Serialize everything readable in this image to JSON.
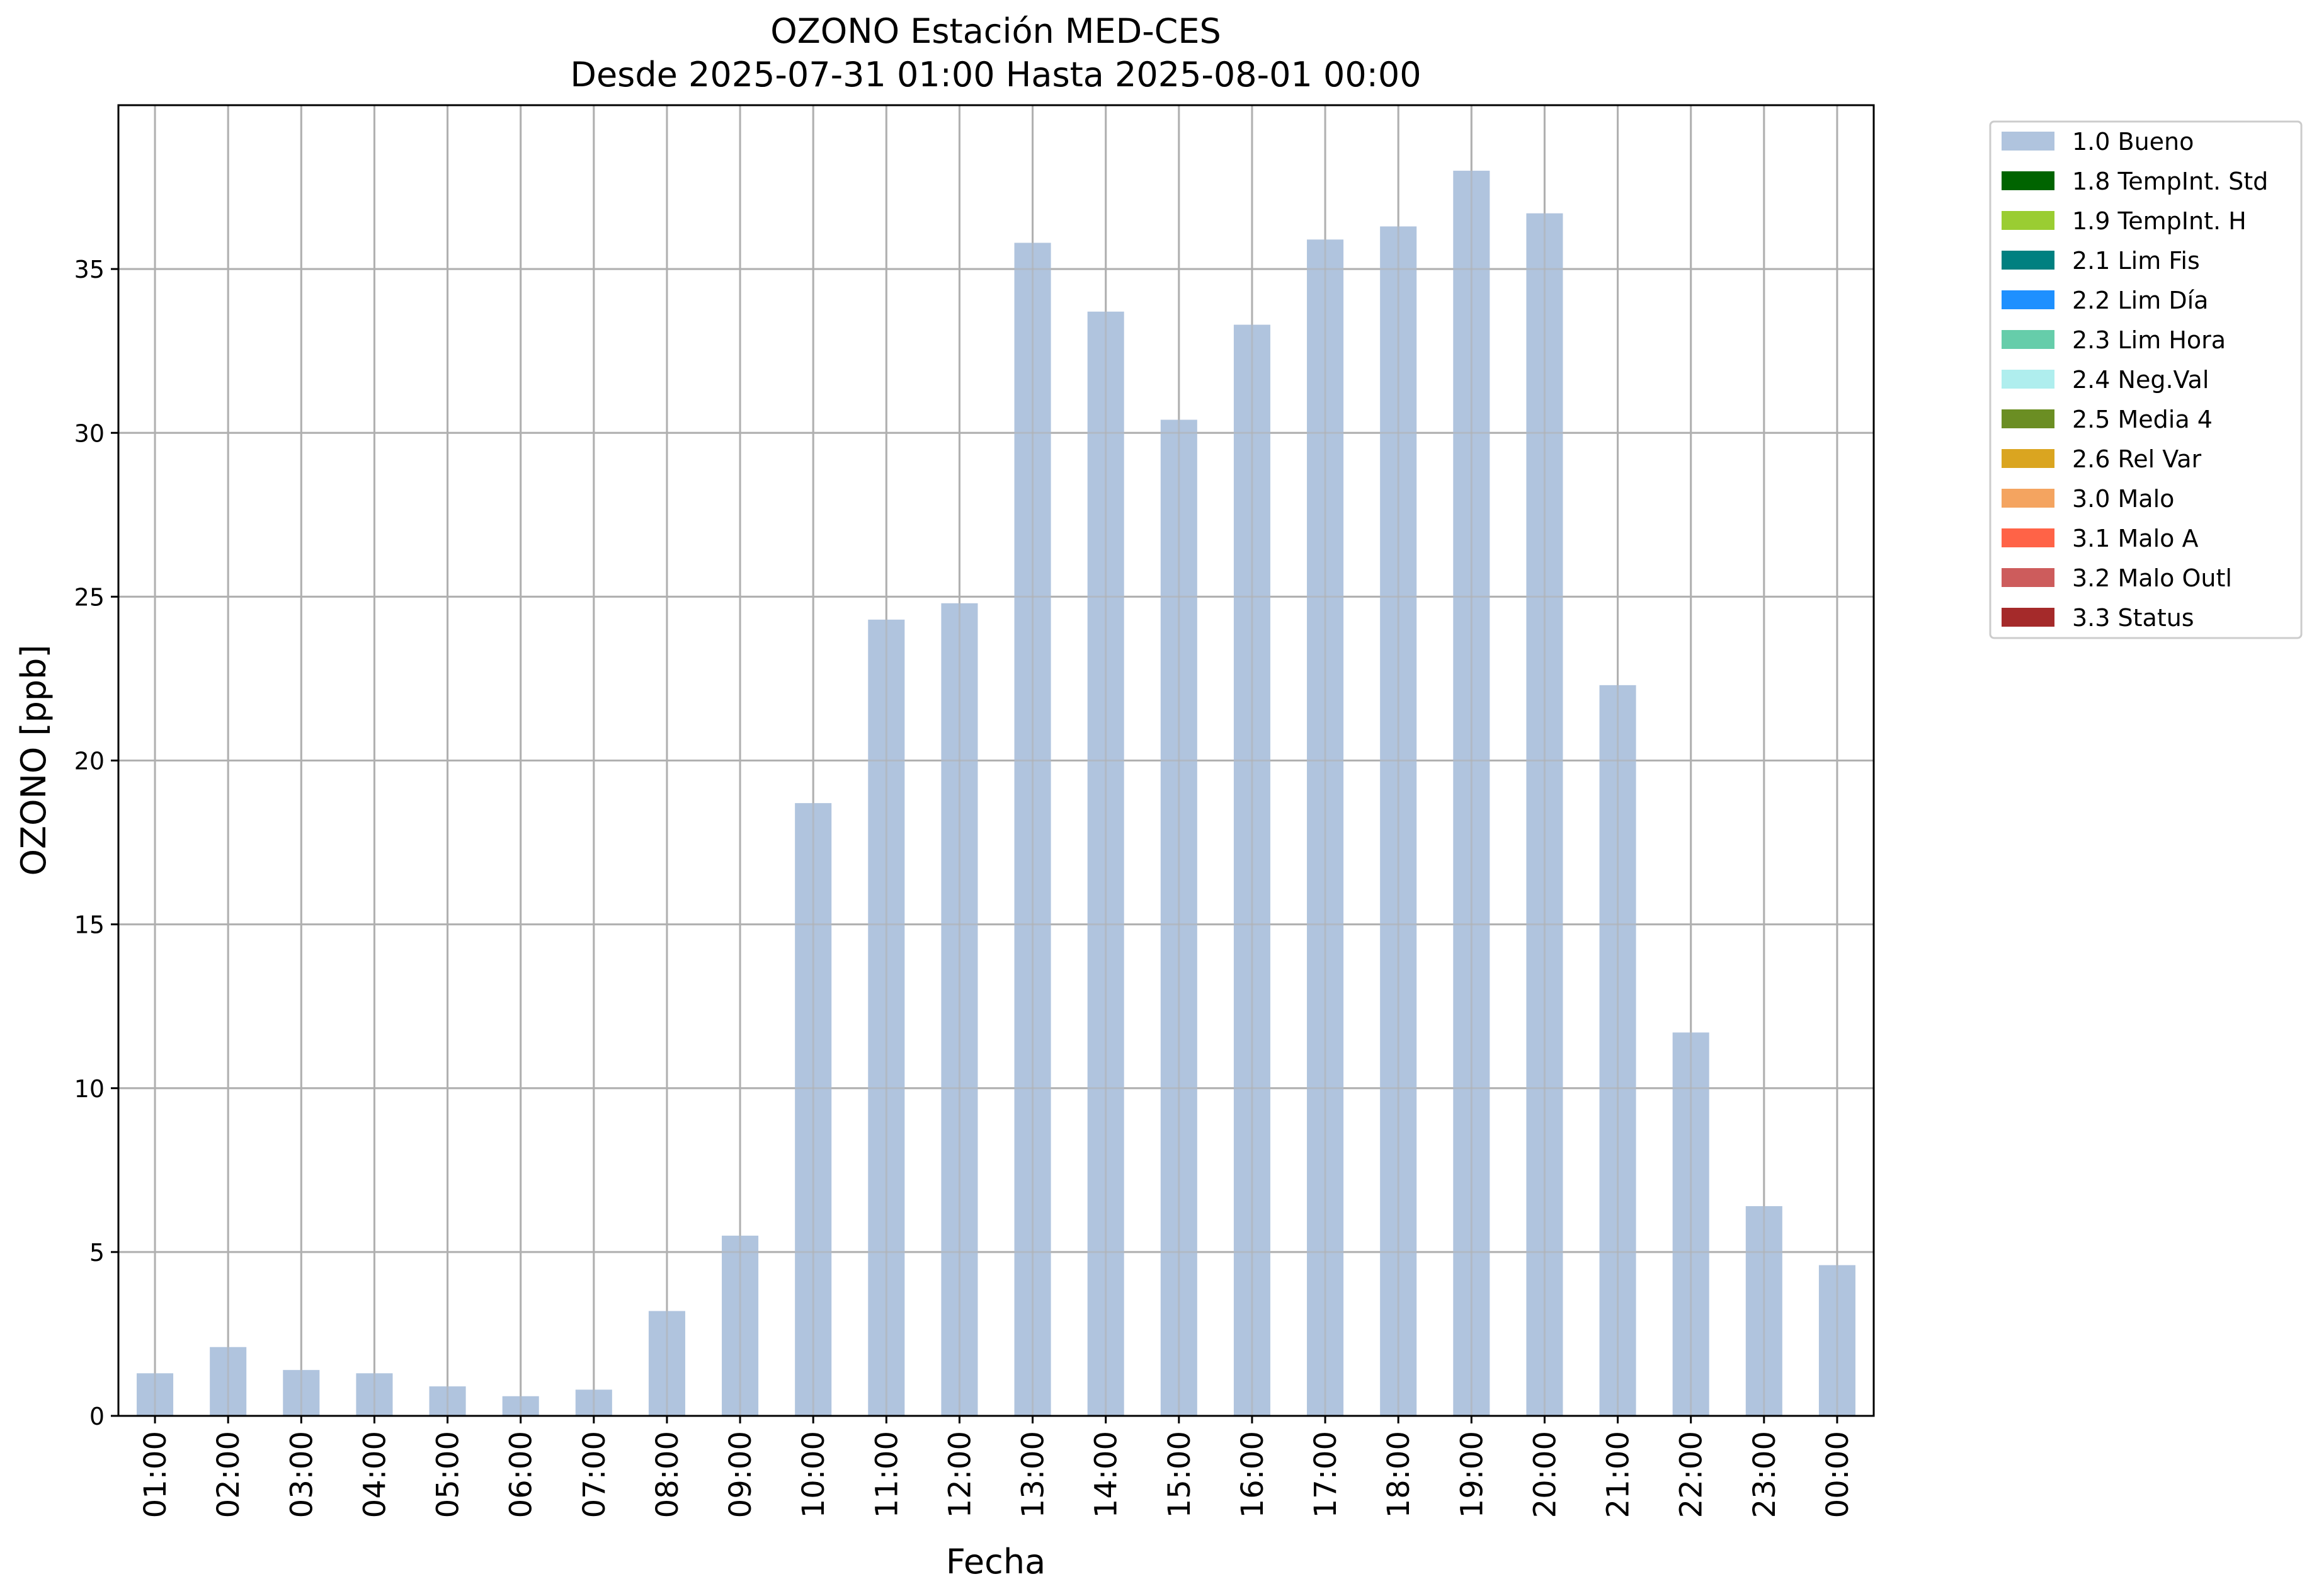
{
  "chart_data": {
    "type": "bar",
    "title": "OZONO Estación MED-CES",
    "subtitle": "Desde 2025-07-31 01:00 Hasta 2025-08-01 00:00",
    "xlabel": "Fecha",
    "ylabel": "OZONO [ppb]",
    "ylim": [
      0,
      40
    ],
    "yticks": [
      0,
      5,
      10,
      15,
      20,
      25,
      30,
      35
    ],
    "grid": true,
    "legend_position": "outside-top-right",
    "categories": [
      "01:00",
      "02:00",
      "03:00",
      "04:00",
      "05:00",
      "06:00",
      "07:00",
      "08:00",
      "09:00",
      "10:00",
      "11:00",
      "12:00",
      "13:00",
      "14:00",
      "15:00",
      "16:00",
      "17:00",
      "18:00",
      "19:00",
      "20:00",
      "21:00",
      "22:00",
      "23:00",
      "00:00"
    ],
    "series": [
      {
        "name": "1.0 Bueno",
        "color": "#b0c4de",
        "values": [
          1.3,
          2.1,
          1.4,
          1.3,
          0.9,
          0.6,
          0.8,
          3.2,
          5.5,
          18.7,
          24.3,
          24.8,
          35.8,
          33.7,
          30.4,
          33.3,
          35.9,
          36.3,
          38.0,
          36.7,
          22.3,
          11.7,
          6.4,
          4.6
        ]
      }
    ],
    "legend": [
      {
        "label": "1.0 Bueno",
        "color": "#b0c4de"
      },
      {
        "label": "1.8 TempInt. Std",
        "color": "#006400"
      },
      {
        "label": "1.9 TempInt. H",
        "color": "#9acd32"
      },
      {
        "label": "2.1 Lim Fis",
        "color": "#008080"
      },
      {
        "label": "2.2 Lim Día",
        "color": "#1e90ff"
      },
      {
        "label": "2.3 Lim Hora",
        "color": "#66cdaa"
      },
      {
        "label": "2.4 Neg.Val",
        "color": "#afeeee"
      },
      {
        "label": "2.5 Media 4",
        "color": "#6b8e23"
      },
      {
        "label": "2.6 Rel Var",
        "color": "#daa520"
      },
      {
        "label": "3.0 Malo",
        "color": "#f4a460"
      },
      {
        "label": "3.1 Malo A",
        "color": "#ff6347"
      },
      {
        "label": "3.2 Malo Outl",
        "color": "#cd5c5c"
      },
      {
        "label": "3.3 Status",
        "color": "#a52a2a"
      }
    ]
  }
}
